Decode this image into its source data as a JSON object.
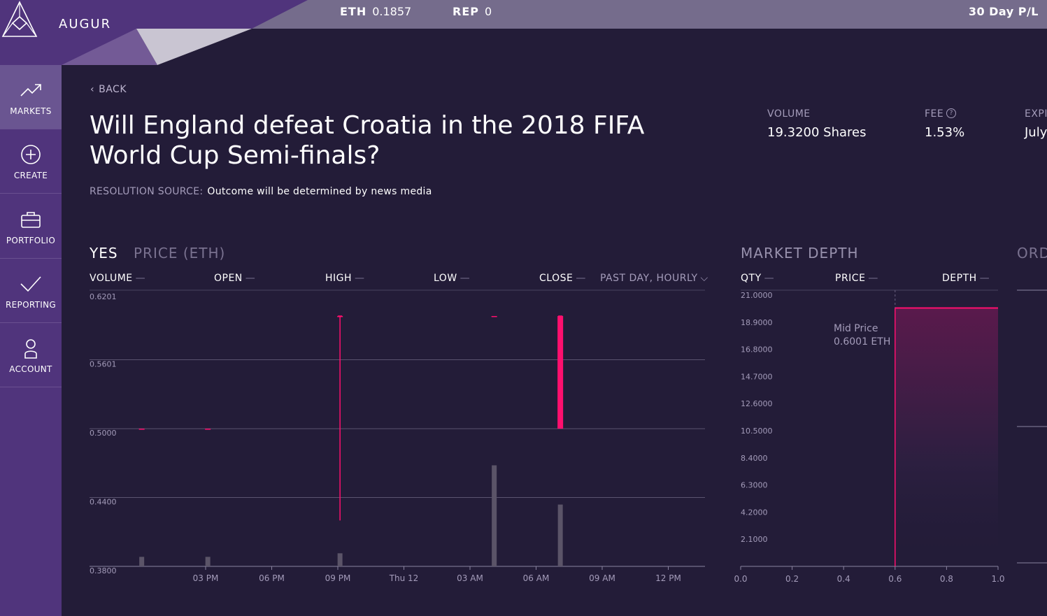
{
  "app": {
    "name": "AUGUR"
  },
  "header": {
    "eth_label": "ETH",
    "eth_value": "0.1857",
    "rep_label": "REP",
    "rep_value": "0",
    "pl_label": "30 Day P/L"
  },
  "sidebar": {
    "items": [
      {
        "label": "MARKETS",
        "icon": "trend-icon"
      },
      {
        "label": "CREATE",
        "icon": "plus-circle-icon"
      },
      {
        "label": "PORTFOLIO",
        "icon": "briefcase-icon"
      },
      {
        "label": "REPORTING",
        "icon": "check-icon"
      },
      {
        "label": "ACCOUNT",
        "icon": "user-icon"
      }
    ]
  },
  "market": {
    "back_label": "BACK",
    "title": "Will England defeat Croatia in the 2018 FIFA World Cup Semi-finals?",
    "resolution_label": "RESOLUTION SOURCE:",
    "resolution_value": "Outcome will be determined by news media",
    "volume_label": "VOLUME",
    "volume_value": "19.3200 Shares",
    "fee_label": "FEE",
    "fee_value": "1.53%",
    "expiry_label": "EXPI",
    "expiry_value": "July"
  },
  "price_chart": {
    "outcome_label": "YES",
    "title": "PRICE (ETH)",
    "columns": {
      "volume": "VOLUME",
      "open": "OPEN",
      "high": "HIGH",
      "low": "LOW",
      "close": "CLOSE",
      "dash": "—"
    },
    "range_select": "PAST DAY, HOURLY"
  },
  "depth_chart": {
    "title": "MARKET DEPTH",
    "columns": {
      "qty": "QTY",
      "price": "PRICE",
      "depth": "DEPTH",
      "dash": "—"
    },
    "mid_label": "Mid Price",
    "mid_value": "0.6001 ETH"
  },
  "orders": {
    "title": "ORD"
  },
  "colors": {
    "accent": "#ff0f6e",
    "sidebar": "#50347c",
    "background": "#231c38",
    "bar": "#5b5468"
  },
  "chart_data": [
    {
      "type": "candlestick",
      "y_ticks": [
        "0.6201",
        "0.5601",
        "0.5000",
        "0.4400",
        "0.3800"
      ],
      "ylim": [
        0.38,
        0.6201
      ],
      "x_ticks": [
        "03 PM",
        "06 PM",
        "09 PM",
        "Thu 12",
        "03 AM",
        "06 AM",
        "09 AM",
        "12 PM"
      ],
      "candles": [
        {
          "hour": -2,
          "open": 0.5,
          "high": 0.5,
          "low": 0.5,
          "close": 0.5,
          "volume": 0.8
        },
        {
          "hour": 1,
          "open": 0.5,
          "high": 0.5,
          "low": 0.5,
          "close": 0.5,
          "volume": 0.8
        },
        {
          "hour": 7,
          "open": 0.6,
          "high": 0.6,
          "low": 0.42,
          "close": 0.6,
          "volume": 1.1
        },
        {
          "hour": 14,
          "open": 0.6,
          "high": 0.6,
          "low": 0.6,
          "close": 0.6,
          "volume": 8.5
        },
        {
          "hour": 17,
          "open": 0.5,
          "high": 0.6,
          "low": 0.5,
          "close": 0.6,
          "volume": 5.2
        }
      ]
    },
    {
      "type": "area",
      "y_ticks": [
        "21.0000",
        "18.9000",
        "16.8000",
        "14.7000",
        "12.6000",
        "10.5000",
        "8.4000",
        "6.3000",
        "4.2000",
        "2.1000"
      ],
      "ylim": [
        0,
        21
      ],
      "x_ticks": [
        "0.0",
        "0.2",
        "0.4",
        "0.6",
        "0.8",
        "1.0"
      ],
      "xlim": [
        0,
        1
      ],
      "asks": [
        {
          "price": 0.6,
          "depth": 20.0
        },
        {
          "price": 1.0,
          "depth": 20.0
        }
      ]
    }
  ]
}
